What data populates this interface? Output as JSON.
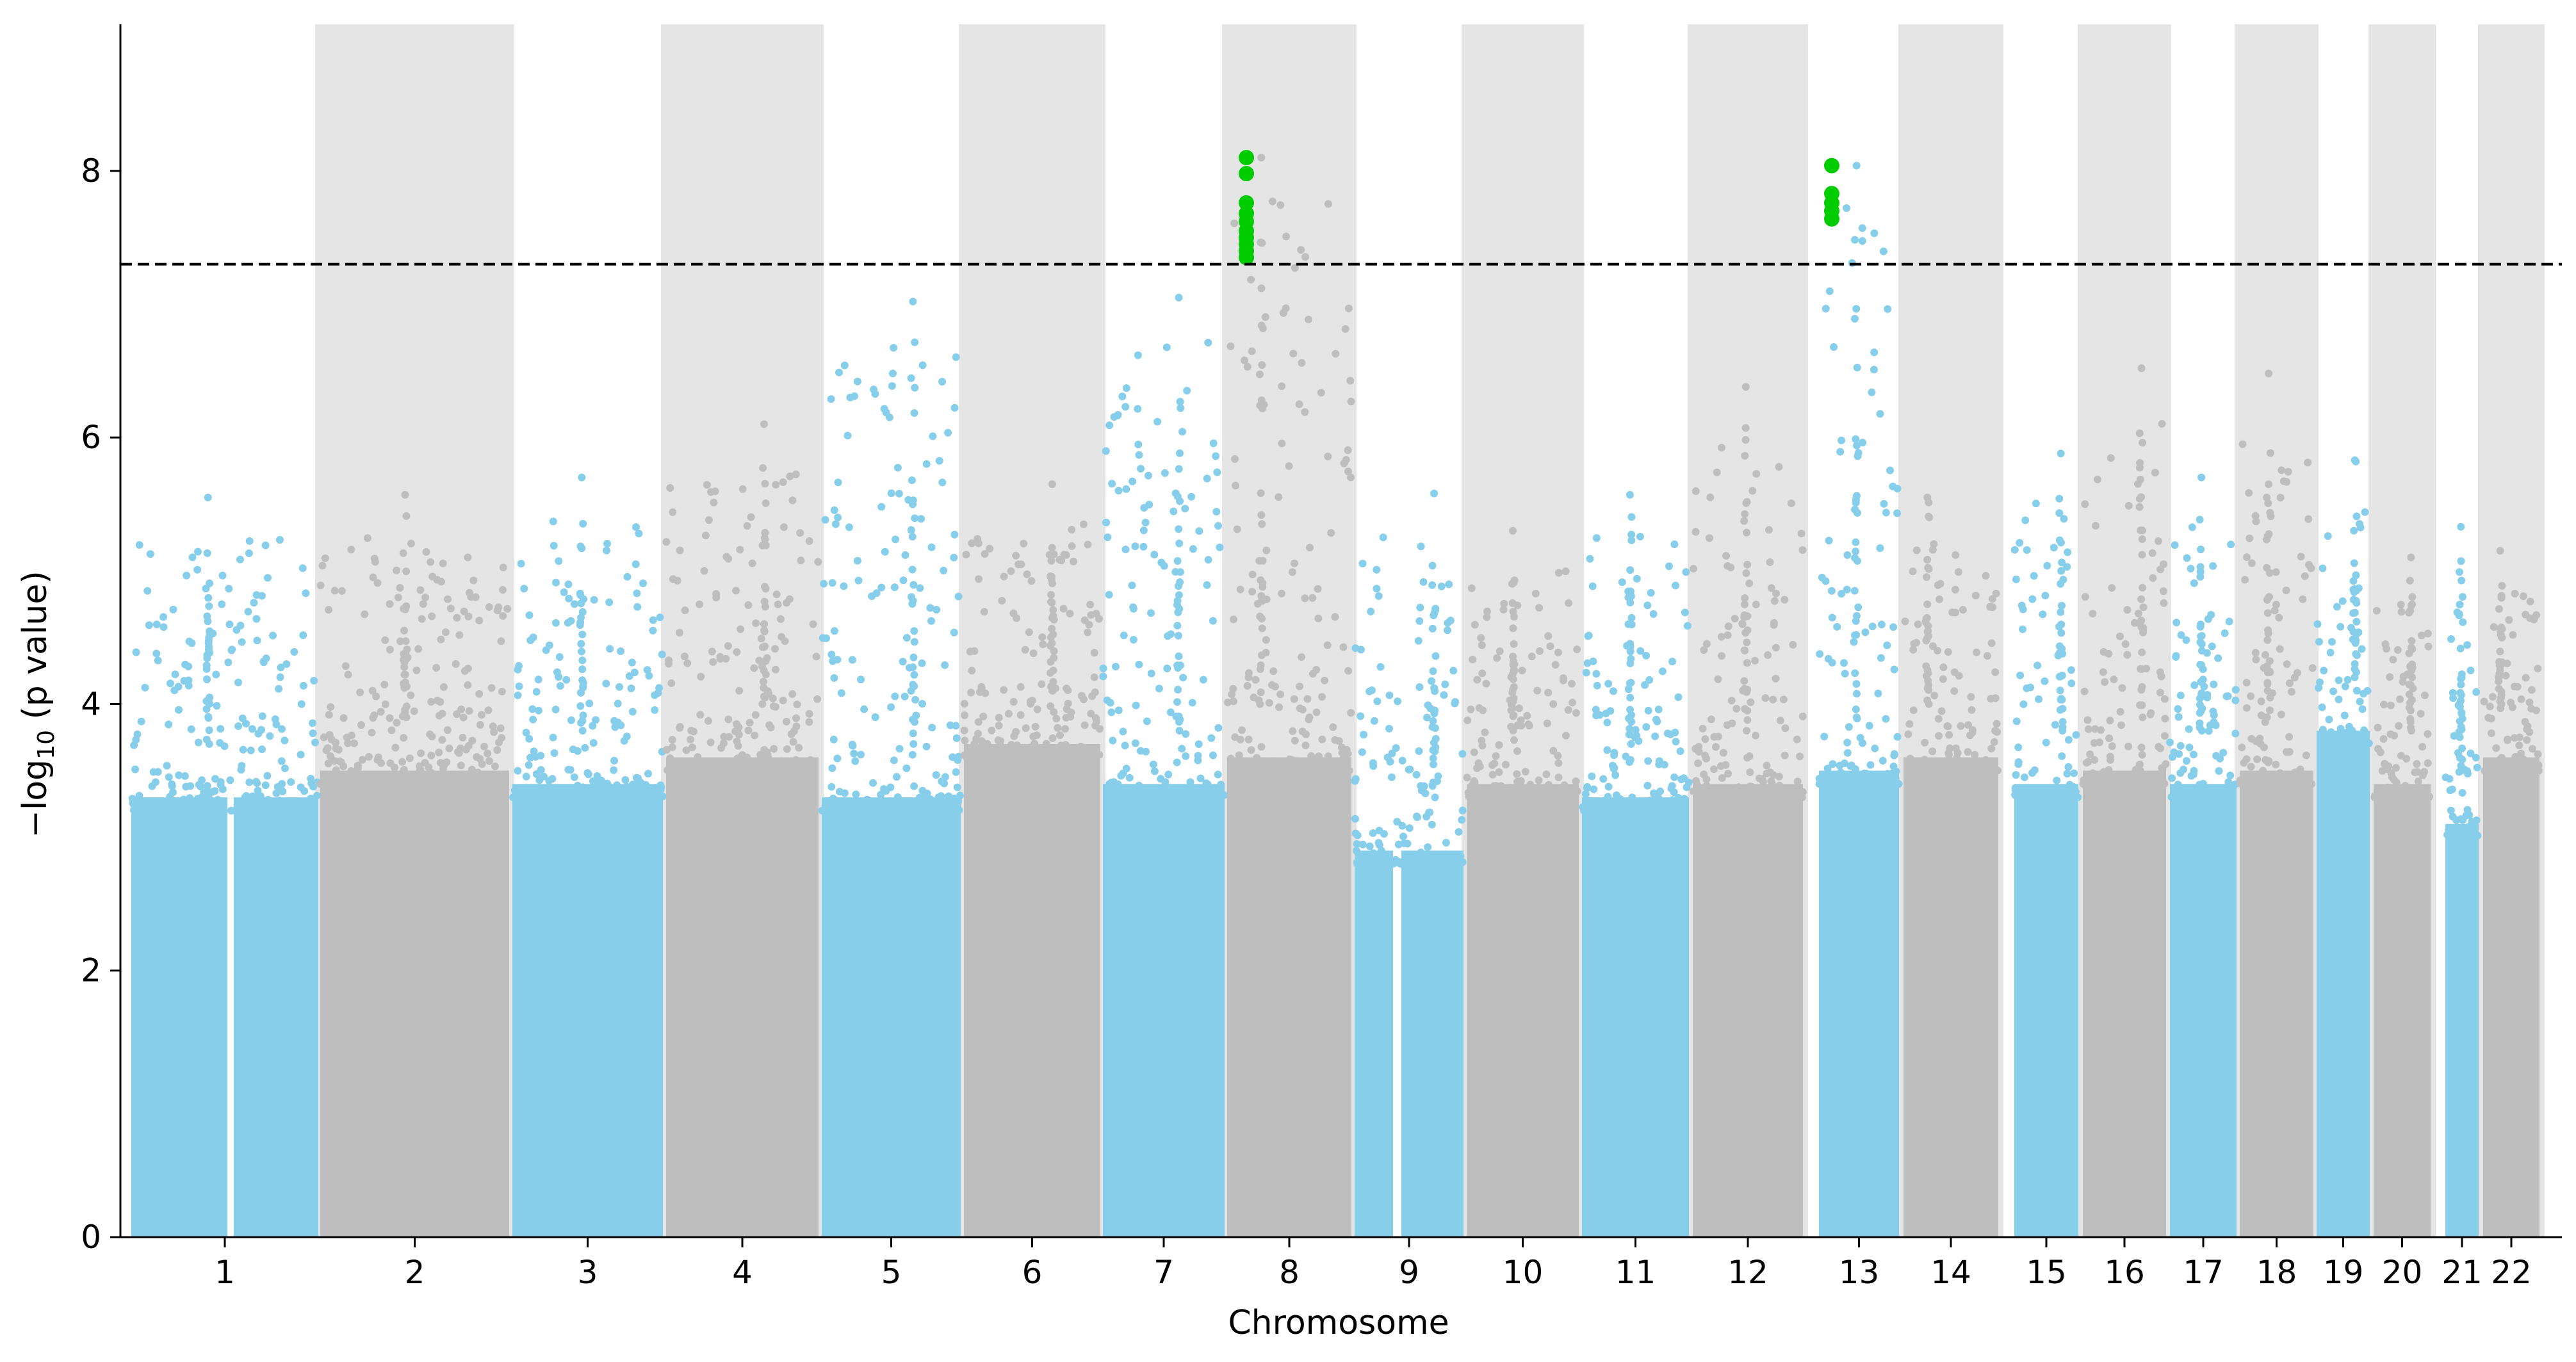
{
  "chart_data": {
    "type": "scatter",
    "subtype": "manhattan",
    "title": "",
    "xlabel": "Chromosome",
    "ylabel_prefix": "−log",
    "ylabel_subscript": "10",
    "ylabel_suffix": " (p value)",
    "ylim": [
      0,
      9.1
    ],
    "yticks": [
      0,
      2,
      4,
      6,
      8
    ],
    "significance_threshold": 7.3,
    "colors": {
      "odd": "#87ceeb",
      "even": "#bebebe",
      "band": "#e5e5e5",
      "significant": "#00cc00",
      "threshold_line": "#000000"
    },
    "chromosomes": [
      {
        "label": "1",
        "peak": 5.55,
        "base": 3.7
      },
      {
        "label": "2",
        "peak": 5.57,
        "base": 3.9
      },
      {
        "label": "3",
        "peak": 5.7,
        "base": 3.8
      },
      {
        "label": "4",
        "peak": 6.1,
        "base": 4.0
      },
      {
        "label": "5",
        "peak": 7.02,
        "base": 3.7
      },
      {
        "label": "6",
        "peak": 5.65,
        "base": 4.1
      },
      {
        "label": "7",
        "peak": 7.05,
        "base": 3.8
      },
      {
        "label": "8",
        "peak": 8.1,
        "base": 4.0
      },
      {
        "label": "9",
        "peak": 5.58,
        "base": 3.3
      },
      {
        "label": "10",
        "peak": 5.3,
        "base": 3.8
      },
      {
        "label": "11",
        "peak": 5.57,
        "base": 3.7
      },
      {
        "label": "12",
        "peak": 6.38,
        "base": 3.8
      },
      {
        "label": "13",
        "peak": 8.04,
        "base": 3.9
      },
      {
        "label": "14",
        "peak": 5.55,
        "base": 4.0
      },
      {
        "label": "15",
        "peak": 5.88,
        "base": 3.8
      },
      {
        "label": "16",
        "peak": 6.52,
        "base": 3.9
      },
      {
        "label": "17",
        "peak": 5.7,
        "base": 3.8
      },
      {
        "label": "18",
        "peak": 6.48,
        "base": 3.9
      },
      {
        "label": "19",
        "peak": 5.83,
        "base": 4.2
      },
      {
        "label": "20",
        "peak": 5.1,
        "base": 3.8
      },
      {
        "label": "21",
        "peak": 5.33,
        "base": 3.5
      },
      {
        "label": "22",
        "peak": 5.15,
        "base": 4.0
      }
    ],
    "significant_points": [
      {
        "chromosome": "8",
        "values": [
          8.1,
          7.98,
          7.76,
          7.68,
          7.62,
          7.55,
          7.5,
          7.45,
          7.4,
          7.35
        ]
      },
      {
        "chromosome": "13",
        "values": [
          8.04,
          7.83,
          7.76,
          7.7,
          7.64
        ]
      }
    ]
  }
}
